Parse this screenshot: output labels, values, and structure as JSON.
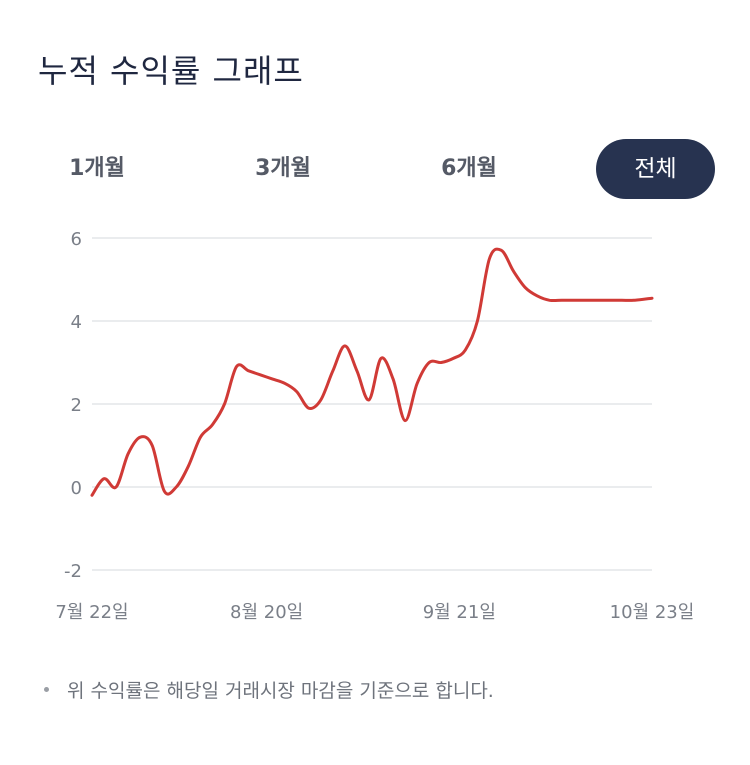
{
  "title": "누적 수익률 그래프",
  "tabs": [
    {
      "label": "1개월",
      "active": false
    },
    {
      "label": "3개월",
      "active": false
    },
    {
      "label": "6개월",
      "active": false
    },
    {
      "label": "전체",
      "active": true
    }
  ],
  "note": "위 수익률은 해당일 거래시장 마감을 기준으로 합니다.",
  "colors": {
    "line": "#d03a36",
    "grid": "#e3e5e8",
    "active_tab": "#273350"
  },
  "chart_data": {
    "type": "line",
    "title": "",
    "xlabel": "",
    "ylabel": "",
    "ylim": [
      -2,
      6
    ],
    "yticks": [
      6,
      4,
      2,
      0,
      -2
    ],
    "xlim": [
      0,
      93
    ],
    "x_tick_labels": [
      {
        "label": "7월 22일",
        "x": 0
      },
      {
        "label": "8월 20일",
        "x": 29
      },
      {
        "label": "9월 21일",
        "x": 61
      },
      {
        "label": "10월 23일",
        "x": 93
      }
    ],
    "grid": true,
    "series": [
      {
        "name": "",
        "x": [
          0,
          2,
          4,
          6,
          8,
          10,
          12,
          14,
          16,
          18,
          20,
          22,
          24,
          26,
          28,
          30,
          32,
          34,
          36,
          38,
          40,
          42,
          44,
          46,
          48,
          50,
          52,
          54,
          56,
          58,
          60,
          62,
          64,
          66,
          68,
          70,
          72,
          74,
          76,
          78,
          80,
          82,
          84,
          86,
          88,
          90,
          93
        ],
        "values": [
          -0.2,
          0.2,
          0.0,
          0.8,
          1.2,
          1.0,
          -0.1,
          0.0,
          0.5,
          1.2,
          1.5,
          2.0,
          2.9,
          2.8,
          2.7,
          2.6,
          2.5,
          2.3,
          1.9,
          2.1,
          2.8,
          3.4,
          2.8,
          2.1,
          3.1,
          2.6,
          1.6,
          2.5,
          3.0,
          3.0,
          3.1,
          3.3,
          4.0,
          5.5,
          5.7,
          5.2,
          4.8,
          4.6,
          4.5,
          4.5,
          4.5,
          4.5,
          4.5,
          4.5,
          4.5,
          4.5,
          4.55
        ]
      }
    ]
  }
}
